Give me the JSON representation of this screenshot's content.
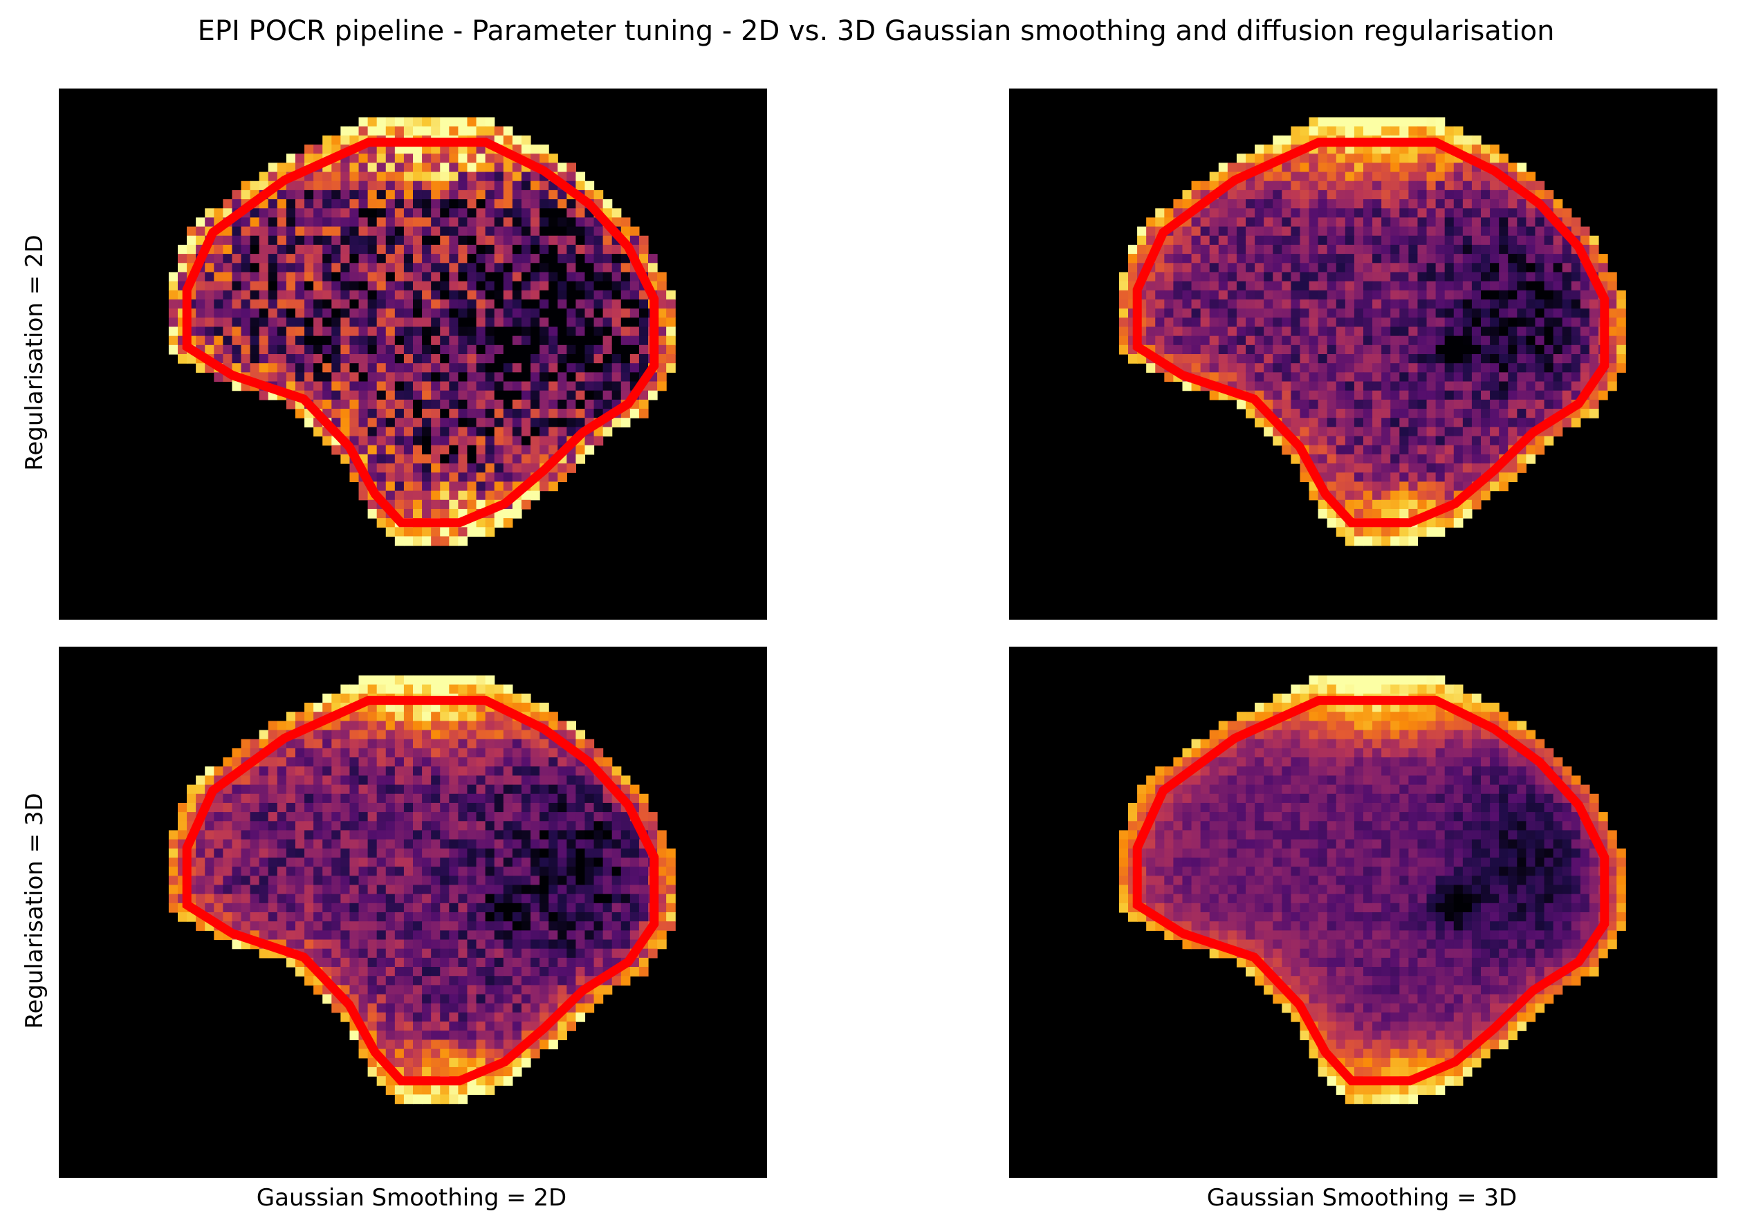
{
  "title": "EPI POCR pipeline - Parameter tuning - 2D vs. 3D Gaussian smoothing and diffusion regularisation",
  "row_labels": [
    "Regularisation = 2D",
    "Regularisation = 3D"
  ],
  "column_labels": [
    "Gaussian Smoothing = 2D",
    "Gaussian Smoothing = 3D"
  ],
  "colormap": "inferno",
  "colors": {
    "background": "#000000",
    "contour": "#ff0000",
    "figure_background": "#ffffff"
  },
  "chart_data": {
    "type": "heatmap",
    "layout": "2x2 grid of images",
    "rows": [
      "Regularisation = 2D",
      "Regularisation = 3D"
    ],
    "columns": [
      "Gaussian Smoothing = 2D",
      "Gaussian Smoothing = 3D"
    ],
    "panels": [
      {
        "regularisation": "2D",
        "gaussian_smoothing": "2D",
        "noise": "high",
        "smoothness": "low"
      },
      {
        "regularisation": "2D",
        "gaussian_smoothing": "3D",
        "noise": "medium",
        "smoothness": "medium"
      },
      {
        "regularisation": "3D",
        "gaussian_smoothing": "2D",
        "noise": "medium",
        "smoothness": "medium"
      },
      {
        "regularisation": "3D",
        "gaussian_smoothing": "3D",
        "noise": "low",
        "smoothness": "high"
      }
    ],
    "axes_ticks": "none",
    "grid": false,
    "overlay": "red contour outline"
  }
}
